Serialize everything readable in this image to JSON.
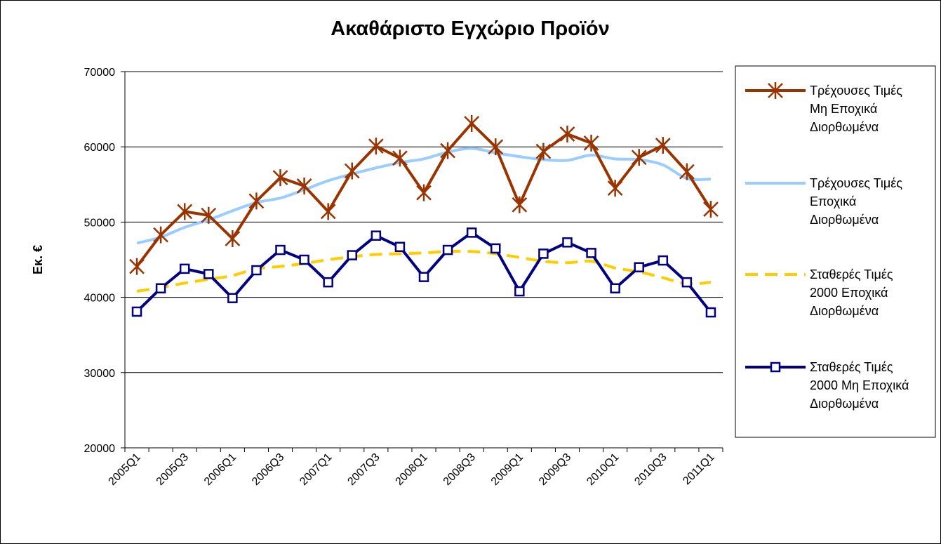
{
  "chart_data": {
    "type": "line",
    "title": "Ακαθάριστο Εγχώριο Προϊόν",
    "xlabel": "",
    "ylabel": "Εκ. €",
    "ylim": [
      20000,
      70000
    ],
    "yticks": [
      20000,
      30000,
      40000,
      50000,
      60000,
      70000
    ],
    "grid": true,
    "legend_position": "right",
    "categories": [
      "2005Q1",
      "2005Q2",
      "2005Q3",
      "2005Q4",
      "2006Q1",
      "2006Q2",
      "2006Q3",
      "2006Q4",
      "2007Q1",
      "2007Q2",
      "2007Q3",
      "2007Q4",
      "2008Q1",
      "2008Q2",
      "2008Q3",
      "2008Q4",
      "2009Q1",
      "2009Q2",
      "2009Q3",
      "2009Q4",
      "2010Q1",
      "2010Q2",
      "2010Q3",
      "2010Q4",
      "2011Q1"
    ],
    "x_tick_labels": [
      "2005Q1",
      "2005Q3",
      "2006Q1",
      "2006Q3",
      "2007Q1",
      "2007Q3",
      "2008Q1",
      "2008Q3",
      "2009Q1",
      "2009Q3",
      "2010Q1",
      "2010Q3",
      "2011Q1"
    ],
    "series": [
      {
        "name": "Τρέχουσες Τιμές Μη Εποχικά Διορθωμένα",
        "legend_lines": [
          "Τρέχουσες Τιμές",
          "Μη Εποχικά",
          "Διορθωμένα"
        ],
        "color": "#993300",
        "style": "solid",
        "marker": "star",
        "values": [
          44100,
          48300,
          51400,
          50900,
          47800,
          52800,
          55900,
          54800,
          51400,
          56800,
          60100,
          58500,
          53900,
          59500,
          63100,
          60000,
          52300,
          59400,
          61700,
          60500,
          54500,
          58600,
          60200,
          56700,
          51700
        ]
      },
      {
        "name": "Τρέχουσες Τιμές Εποχικά Διορθωμένα",
        "legend_lines": [
          "Τρέχουσες Τιμές",
          "Εποχικά",
          "Διορθωμένα"
        ],
        "color": "#99ccff",
        "style": "solid",
        "marker": "none",
        "values": [
          47200,
          48000,
          49300,
          50300,
          51500,
          52600,
          53200,
          54300,
          55500,
          56400,
          57200,
          57900,
          58400,
          59300,
          59800,
          59200,
          58700,
          58300,
          58200,
          58900,
          58400,
          58300,
          57600,
          55800,
          55700
        ]
      },
      {
        "name": "Σταθερές Τιμές 2000 Εποχικά Διορθωμένα",
        "legend_lines": [
          "Σταθερές Τιμές",
          "2000 Εποχικά",
          "Διορθωμένα"
        ],
        "color": "#ffcc00",
        "style": "dashed",
        "marker": "none",
        "values": [
          40800,
          41300,
          41900,
          42400,
          42900,
          43800,
          44100,
          44500,
          45000,
          45400,
          45700,
          45800,
          45900,
          46100,
          46100,
          45800,
          45300,
          44800,
          44600,
          44800,
          43900,
          43400,
          42600,
          41800,
          42000
        ]
      },
      {
        "name": "Σταθερές Τιμές 2000 Μη Εποχικά Διορθωμένα",
        "legend_lines": [
          "Σταθερές Τιμές",
          "2000 Μη Εποχικά",
          "Διορθωμένα"
        ],
        "color": "#000080",
        "style": "solid",
        "marker": "square",
        "values": [
          38100,
          41200,
          43800,
          43100,
          39900,
          43600,
          46300,
          45000,
          42000,
          45600,
          48200,
          46700,
          42700,
          46300,
          48600,
          46500,
          40800,
          45800,
          47300,
          45900,
          41200,
          44000,
          44900,
          42000,
          38000
        ]
      }
    ]
  }
}
